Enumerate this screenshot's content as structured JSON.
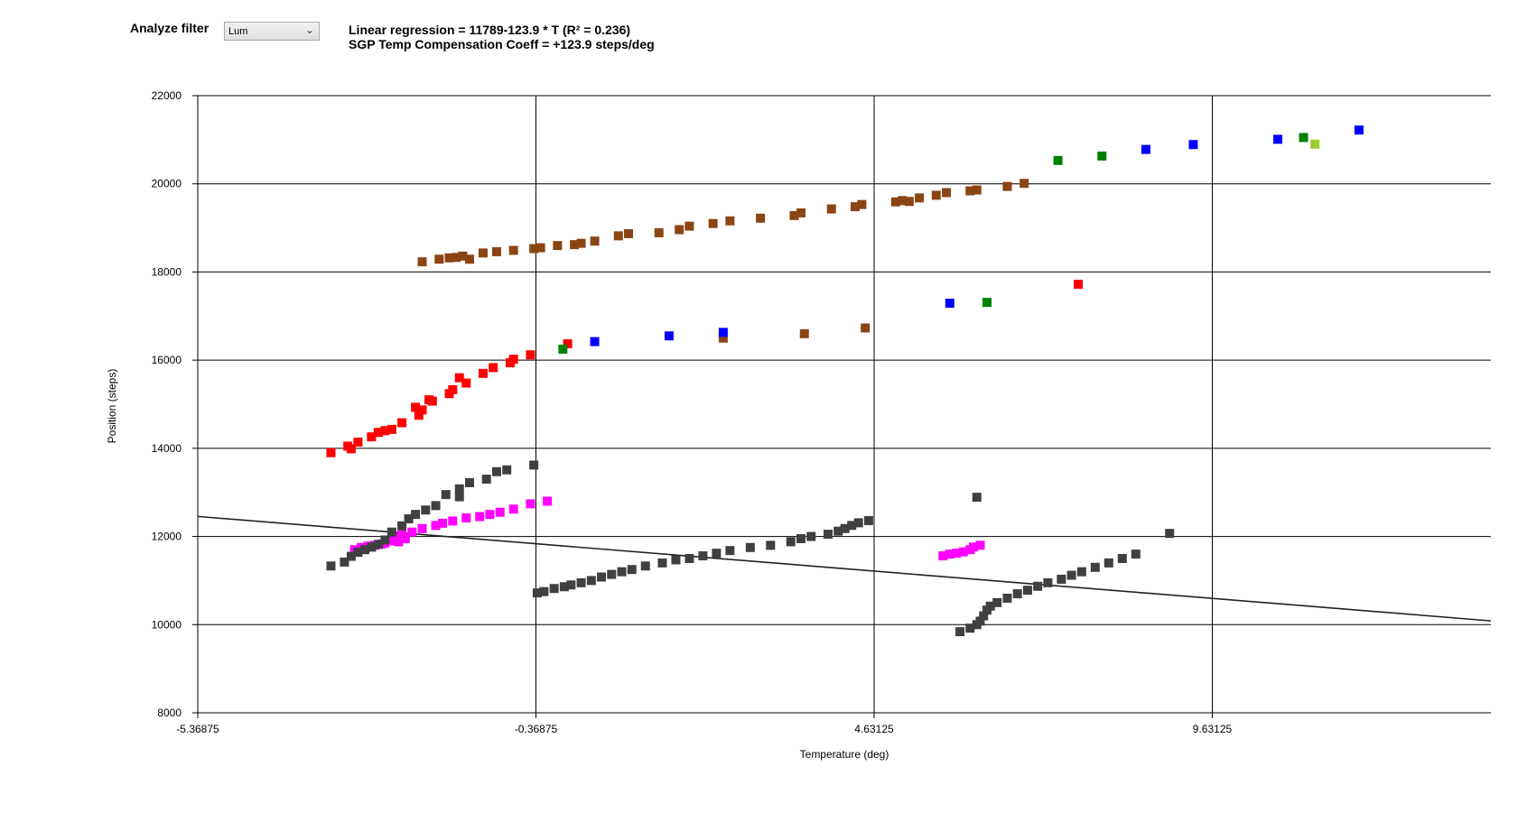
{
  "controls": {
    "filter_label": "Analyze filter",
    "filter_value": "Lum"
  },
  "regression": {
    "line1": "Linear regression = 11789-123.9 * T  (R² = 0.236)",
    "line2": "SGP Temp Compensation Coeff = +123.9 steps/deg"
  },
  "chart_data": {
    "type": "scatter",
    "xlabel": "Temperature (deg)",
    "ylabel": "Position (steps)",
    "xlim": [
      -5.36875,
      13.75
    ],
    "ylim": [
      8000,
      22000
    ],
    "x_ticks": [
      -5.36875,
      -0.36875,
      4.63125,
      9.63125
    ],
    "x_tick_labels": [
      "-5.36875",
      "-0.36875",
      "4.63125",
      "9.63125"
    ],
    "y_ticks": [
      8000,
      10000,
      12000,
      14000,
      16000,
      18000,
      20000,
      22000
    ],
    "y_tick_labels": [
      "8000",
      "10000",
      "12000",
      "14000",
      "16000",
      "18000",
      "20000",
      "22000"
    ],
    "grid": true,
    "regression_line": {
      "intercept": 11789,
      "slope": -123.9,
      "color": "#222222"
    },
    "series": [
      {
        "color": "#8B4513",
        "points": [
          [
            -2.05,
            18230
          ],
          [
            -1.8,
            18290
          ],
          [
            -1.65,
            18320
          ],
          [
            -1.55,
            18330
          ],
          [
            -1.45,
            18360
          ],
          [
            -1.35,
            18290
          ],
          [
            -1.15,
            18430
          ],
          [
            -0.95,
            18460
          ],
          [
            -0.7,
            18490
          ],
          [
            -0.4,
            18530
          ],
          [
            -0.3,
            18550
          ],
          [
            -0.05,
            18600
          ],
          [
            0.2,
            18620
          ],
          [
            0.3,
            18650
          ],
          [
            0.5,
            18700
          ],
          [
            0.85,
            18820
          ],
          [
            1.0,
            18870
          ],
          [
            1.45,
            18890
          ],
          [
            1.75,
            18960
          ],
          [
            1.9,
            19040
          ],
          [
            2.25,
            19100
          ],
          [
            2.5,
            19160
          ],
          [
            2.95,
            19220
          ],
          [
            3.45,
            19280
          ],
          [
            3.55,
            19340
          ],
          [
            4.0,
            19430
          ],
          [
            4.35,
            19480
          ],
          [
            4.45,
            19530
          ],
          [
            4.95,
            19590
          ],
          [
            5.05,
            19620
          ],
          [
            5.15,
            19600
          ],
          [
            5.3,
            19680
          ],
          [
            5.55,
            19740
          ],
          [
            5.7,
            19800
          ],
          [
            6.05,
            19840
          ],
          [
            6.15,
            19860
          ],
          [
            6.6,
            19940
          ],
          [
            6.85,
            20010
          ],
          [
            2.4,
            16500
          ],
          [
            3.6,
            16600
          ],
          [
            4.5,
            16730
          ]
        ]
      },
      {
        "color": "#FF0000",
        "points": [
          [
            -3.4,
            13900
          ],
          [
            -3.15,
            14050
          ],
          [
            -3.1,
            13990
          ],
          [
            -3.0,
            14140
          ],
          [
            -2.8,
            14260
          ],
          [
            -2.7,
            14360
          ],
          [
            -2.6,
            14400
          ],
          [
            -2.5,
            14430
          ],
          [
            -2.35,
            14580
          ],
          [
            -2.15,
            14930
          ],
          [
            -2.1,
            14750
          ],
          [
            -2.05,
            14870
          ],
          [
            -1.95,
            15100
          ],
          [
            -1.9,
            15070
          ],
          [
            -1.65,
            15240
          ],
          [
            -1.6,
            15330
          ],
          [
            -1.5,
            15600
          ],
          [
            -1.4,
            15480
          ],
          [
            -1.15,
            15700
          ],
          [
            -1.0,
            15830
          ],
          [
            -0.75,
            15940
          ],
          [
            -0.7,
            16020
          ],
          [
            -0.45,
            16120
          ],
          [
            0.1,
            16370
          ],
          [
            7.65,
            17720
          ]
        ]
      },
      {
        "color": "#0000FF",
        "points": [
          [
            0.5,
            16420
          ],
          [
            1.6,
            16550
          ],
          [
            2.4,
            16630
          ],
          [
            5.75,
            17290
          ],
          [
            9.35,
            20890
          ],
          [
            10.6,
            21010
          ],
          [
            11.8,
            21220
          ],
          [
            8.65,
            20780
          ]
        ]
      },
      {
        "color": "#008000",
        "points": [
          [
            0.03,
            16250
          ],
          [
            6.3,
            17310
          ],
          [
            7.35,
            20530
          ],
          [
            8.0,
            20630
          ],
          [
            10.98,
            21050
          ]
        ]
      },
      {
        "color": "#9ACD32",
        "points": [
          [
            11.15,
            20900
          ]
        ]
      },
      {
        "color": "#FF00FF",
        "points": [
          [
            -3.05,
            11700
          ],
          [
            -2.95,
            11750
          ],
          [
            -2.9,
            11720
          ],
          [
            -2.85,
            11780
          ],
          [
            -2.8,
            11760
          ],
          [
            -2.75,
            11800
          ],
          [
            -2.65,
            11830
          ],
          [
            -2.6,
            11850
          ],
          [
            -2.5,
            11900
          ],
          [
            -2.45,
            11980
          ],
          [
            -2.4,
            11880
          ],
          [
            -2.35,
            12050
          ],
          [
            -2.3,
            11950
          ],
          [
            -2.2,
            12100
          ],
          [
            -2.05,
            12180
          ],
          [
            -1.85,
            12250
          ],
          [
            -1.75,
            12300
          ],
          [
            -1.6,
            12350
          ],
          [
            -1.4,
            12420
          ],
          [
            -1.2,
            12450
          ],
          [
            -1.05,
            12500
          ],
          [
            -0.9,
            12550
          ],
          [
            -0.7,
            12620
          ],
          [
            -0.45,
            12740
          ],
          [
            -0.2,
            12800
          ],
          [
            5.65,
            11560
          ],
          [
            5.75,
            11600
          ],
          [
            5.85,
            11620
          ],
          [
            5.95,
            11650
          ],
          [
            6.05,
            11700
          ],
          [
            6.1,
            11760
          ],
          [
            6.2,
            11800
          ]
        ]
      },
      {
        "color": "#404040",
        "points": [
          [
            -3.4,
            11330
          ],
          [
            -3.2,
            11420
          ],
          [
            -3.1,
            11550
          ],
          [
            -3.0,
            11640
          ],
          [
            -2.9,
            11700
          ],
          [
            -2.8,
            11760
          ],
          [
            -2.7,
            11820
          ],
          [
            -2.6,
            11920
          ],
          [
            -2.5,
            12100
          ],
          [
            -2.35,
            12240
          ],
          [
            -2.25,
            12400
          ],
          [
            -2.15,
            12500
          ],
          [
            -2.0,
            12600
          ],
          [
            -1.85,
            12700
          ],
          [
            -1.7,
            12950
          ],
          [
            -1.5,
            13080
          ],
          [
            -1.35,
            13220
          ],
          [
            -1.1,
            13300
          ],
          [
            -0.95,
            13470
          ],
          [
            -0.8,
            13510
          ],
          [
            -0.4,
            13620
          ],
          [
            -1.5,
            12900
          ],
          [
            -0.35,
            10720
          ],
          [
            -0.25,
            10750
          ],
          [
            -0.1,
            10820
          ],
          [
            0.05,
            10860
          ],
          [
            0.15,
            10900
          ],
          [
            0.3,
            10950
          ],
          [
            0.45,
            11000
          ],
          [
            0.6,
            11080
          ],
          [
            0.75,
            11140
          ],
          [
            0.9,
            11200
          ],
          [
            1.05,
            11250
          ],
          [
            1.25,
            11330
          ],
          [
            1.5,
            11400
          ],
          [
            1.7,
            11470
          ],
          [
            1.9,
            11500
          ],
          [
            2.1,
            11560
          ],
          [
            2.3,
            11620
          ],
          [
            2.5,
            11680
          ],
          [
            2.8,
            11750
          ],
          [
            3.1,
            11800
          ],
          [
            3.4,
            11880
          ],
          [
            3.55,
            11950
          ],
          [
            3.7,
            12000
          ],
          [
            3.95,
            12050
          ],
          [
            4.1,
            12120
          ],
          [
            4.2,
            12180
          ],
          [
            4.3,
            12250
          ],
          [
            4.4,
            12310
          ],
          [
            4.55,
            12360
          ],
          [
            5.9,
            9840
          ],
          [
            6.05,
            9920
          ],
          [
            6.15,
            10000
          ],
          [
            6.2,
            10080
          ],
          [
            6.25,
            10200
          ],
          [
            6.3,
            10330
          ],
          [
            6.35,
            10420
          ],
          [
            6.45,
            10500
          ],
          [
            6.6,
            10600
          ],
          [
            6.75,
            10700
          ],
          [
            6.9,
            10780
          ],
          [
            7.05,
            10870
          ],
          [
            7.2,
            10950
          ],
          [
            7.4,
            11030
          ],
          [
            7.55,
            11120
          ],
          [
            7.7,
            11200
          ],
          [
            7.9,
            11300
          ],
          [
            8.1,
            11400
          ],
          [
            8.3,
            11500
          ],
          [
            8.5,
            11600
          ],
          [
            9.0,
            12070
          ],
          [
            6.15,
            12890
          ]
        ]
      }
    ]
  }
}
